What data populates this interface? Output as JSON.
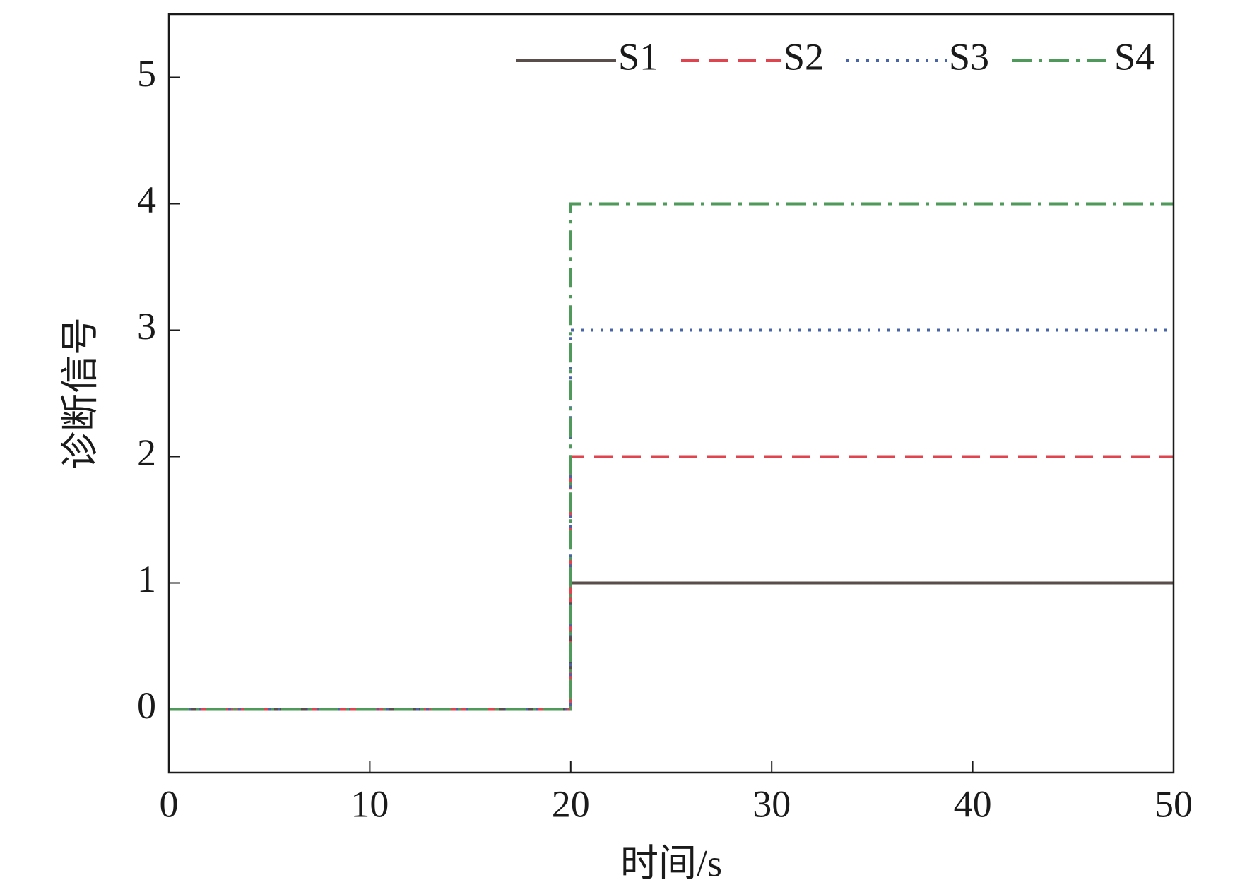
{
  "chart_data": {
    "type": "line",
    "step": true,
    "x": [
      0,
      20,
      20,
      50
    ],
    "series": [
      {
        "name": "S1",
        "color": "#5a4e4b",
        "linestyle": "solid",
        "values": [
          0,
          0,
          1,
          1
        ]
      },
      {
        "name": "S2",
        "color": "#e0454f",
        "linestyle": "dashed",
        "values": [
          0,
          0,
          2,
          2
        ]
      },
      {
        "name": "S3",
        "color": "#4a64a8",
        "linestyle": "dotted",
        "values": [
          0,
          0,
          3,
          3
        ]
      },
      {
        "name": "S4",
        "color": "#4f9a5a",
        "linestyle": "dashdot",
        "values": [
          0,
          0,
          4,
          4
        ]
      }
    ],
    "xlabel": "时间/s",
    "ylabel": "诊断信号",
    "xlim": [
      0,
      50
    ],
    "xticks": [
      0,
      10,
      20,
      30,
      40,
      50
    ],
    "ylim": [
      -0.5,
      5.5
    ],
    "yticks": [
      0,
      1,
      2,
      3,
      4,
      5
    ],
    "legend": "upper right"
  }
}
